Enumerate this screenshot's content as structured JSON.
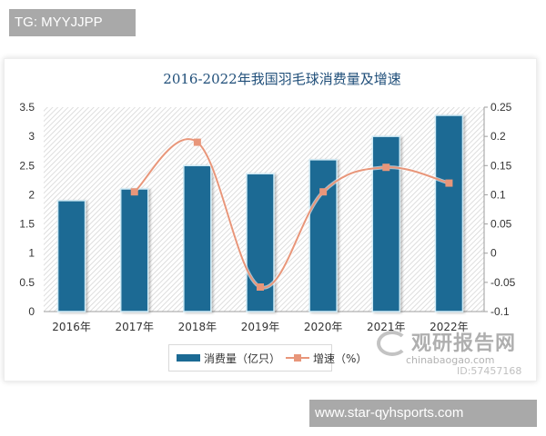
{
  "overlay": {
    "top_tag": "TG: MYYJJPP",
    "bottom_tag": "www.star-qyhsports.com"
  },
  "watermark": {
    "name": "观研报告网",
    "url": "chinabaogao.com",
    "id": "ID:57457168"
  },
  "colors": {
    "bar": "#1b6a94",
    "bar_outline": "#cfeaf5",
    "line": "#e8967a",
    "title": "#1f4e79",
    "axis_text": "#333333",
    "hatch": "#d6d6d6"
  },
  "legend": {
    "bar_label": "消费量（亿只）",
    "line_label": "增速（%）"
  },
  "chart_data": {
    "type": "bar+line",
    "title": "2016-2022年我国羽毛球消费量及增速",
    "categories": [
      "2016年",
      "2017年",
      "2018年",
      "2019年",
      "2020年",
      "2021年",
      "2022年"
    ],
    "series": [
      {
        "name": "消费量（亿只）",
        "type": "bar",
        "axis": "left",
        "values": [
          1.9,
          2.1,
          2.5,
          2.36,
          2.6,
          3.0,
          3.36
        ]
      },
      {
        "name": "增速（%）",
        "type": "line",
        "axis": "right",
        "smooth": true,
        "values": [
          null,
          0.105,
          0.19,
          -0.058,
          0.105,
          0.147,
          0.12
        ]
      }
    ],
    "left_axis": {
      "ylim": [
        0,
        3.5
      ],
      "ticks": [
        "0",
        "0.5",
        "1",
        "1.5",
        "2",
        "2.5",
        "3",
        "3.5"
      ]
    },
    "right_axis": {
      "ylim": [
        -0.1,
        0.25
      ],
      "ticks": [
        "-0.1",
        "-0.05",
        "0",
        "0.05",
        "0.1",
        "0.15",
        "0.2",
        "0.25"
      ]
    },
    "xlabel": "",
    "ylabel": "",
    "grid": false,
    "background": "diagonal-hatch",
    "legend_position": "bottom"
  }
}
